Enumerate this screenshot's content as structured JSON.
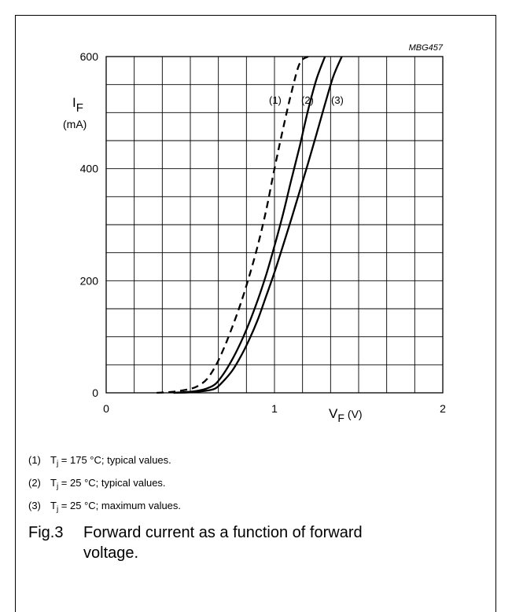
{
  "chart_data": {
    "type": "line",
    "code": "MBG457",
    "ylabel_main": "I",
    "ylabel_sub": "F",
    "ylabel_unit": "(mA)",
    "xlabel_main": "V",
    "xlabel_sub": "F",
    "xlabel_unit": "(V)",
    "xlim": [
      0,
      2
    ],
    "ylim": [
      0,
      600
    ],
    "x_ticks": [
      0,
      1,
      2
    ],
    "y_ticks": [
      0,
      200,
      400,
      600
    ],
    "grid": true,
    "series": [
      {
        "name": "(1)",
        "dashed": true,
        "x": [
          0.3,
          0.4,
          0.5,
          0.55,
          0.6,
          0.65,
          0.7,
          0.75,
          0.8,
          0.85,
          0.9,
          0.95,
          1.0,
          1.05,
          1.1,
          1.15,
          1.2
        ],
        "y": [
          0,
          2,
          7,
          13,
          25,
          48,
          80,
          118,
          160,
          208,
          262,
          325,
          400,
          470,
          535,
          588,
          605
        ]
      },
      {
        "name": "(2)",
        "dashed": false,
        "x": [
          0.4,
          0.5,
          0.55,
          0.6,
          0.65,
          0.7,
          0.75,
          0.8,
          0.85,
          0.9,
          0.95,
          1.0,
          1.05,
          1.1,
          1.15,
          1.2,
          1.25,
          1.3
        ],
        "y": [
          0,
          2,
          4,
          8,
          16,
          35,
          60,
          90,
          125,
          165,
          210,
          262,
          318,
          380,
          440,
          505,
          560,
          605
        ]
      },
      {
        "name": "(3)",
        "dashed": false,
        "x": [
          0.4,
          0.5,
          0.6,
          0.65,
          0.7,
          0.75,
          0.8,
          0.85,
          0.9,
          0.95,
          1.0,
          1.05,
          1.1,
          1.15,
          1.2,
          1.25,
          1.3,
          1.35,
          1.4
        ],
        "y": [
          0,
          1,
          4,
          8,
          22,
          40,
          65,
          95,
          130,
          172,
          215,
          262,
          310,
          360,
          410,
          462,
          515,
          565,
          605
        ]
      }
    ]
  },
  "notes": [
    {
      "num": "(1)",
      "sym": "T",
      "sub": "j",
      "text": " = 175 °C; typical values."
    },
    {
      "num": "(2)",
      "sym": "T",
      "sub": "j",
      "text": " = 25 °C; typical values."
    },
    {
      "num": "(3)",
      "sym": "T",
      "sub": "j",
      "text": " = 25 °C; maximum values."
    }
  ],
  "caption": {
    "fig": "Fig.3",
    "text": "Forward current as a function of forward voltage."
  }
}
